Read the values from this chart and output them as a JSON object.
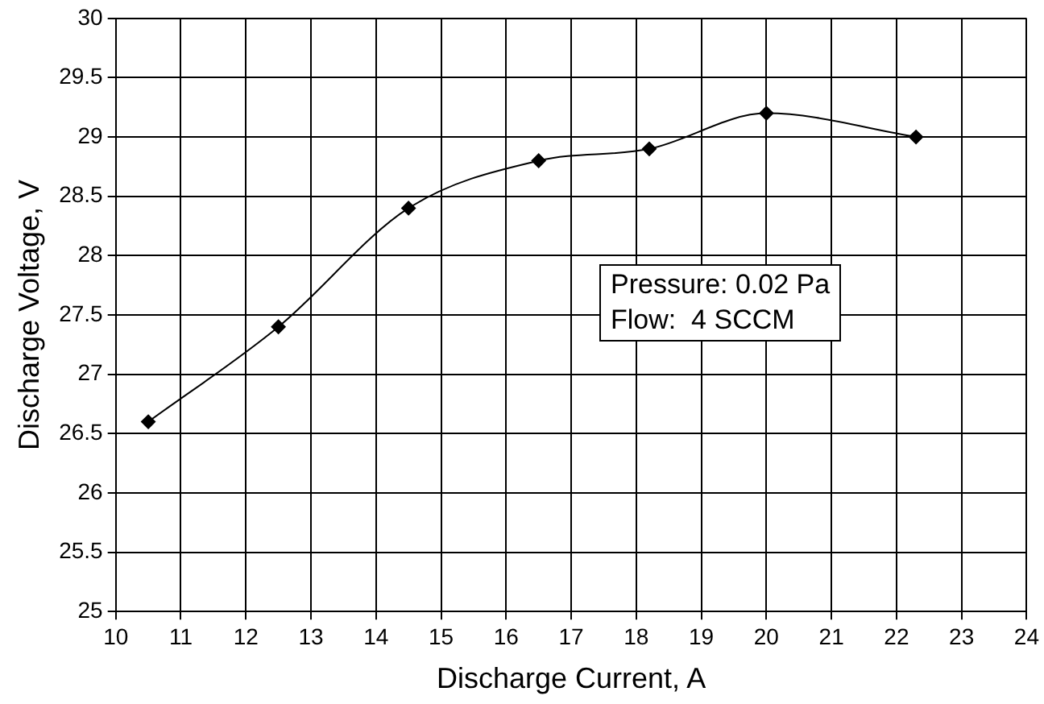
{
  "chart_data": {
    "type": "line",
    "xlabel": "Discharge Current, A",
    "ylabel": "Discharge Voltage, V",
    "x": [
      10.5,
      12.5,
      14.5,
      16.5,
      18.2,
      20,
      22.3
    ],
    "series": [
      {
        "color": "#000000",
        "values": [
          26.6,
          27.4,
          28.4,
          28.8,
          28.9,
          29.2,
          29.0
        ]
      }
    ],
    "xlim": [
      10,
      24
    ],
    "xticks": [
      10,
      11,
      12,
      13,
      14,
      15,
      16,
      17,
      18,
      19,
      20,
      21,
      22,
      23,
      24
    ],
    "ylim": [
      25,
      30
    ],
    "yticks": [
      25,
      25.5,
      26,
      26.5,
      27,
      27.5,
      28,
      28.5,
      29,
      29.5,
      30
    ],
    "grid": true,
    "legend": false,
    "marker": "diamond",
    "line_style": "solid",
    "annotations": [
      "Pressure: 0.02 Pa",
      "Flow:  4 SCCM"
    ]
  }
}
